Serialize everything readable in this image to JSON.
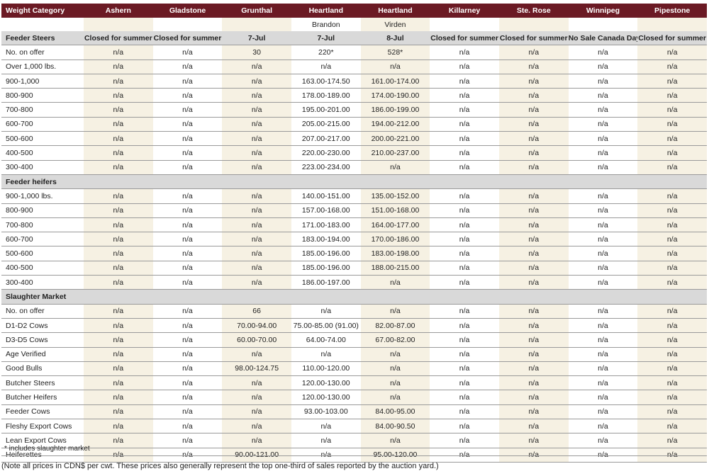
{
  "columns": [
    "Weight Category",
    "Ashern",
    "Gladstone",
    "Grunthal",
    "Heartland",
    "Heartland",
    "Killarney",
    "Ste. Rose",
    "Winnipeg",
    "Pipestone"
  ],
  "subheaders": [
    "",
    "",
    "",
    "",
    "Brandon",
    "Virden",
    "",
    "",
    "",
    ""
  ],
  "rows": [
    {
      "section": true,
      "cells": [
        "Feeder Steers",
        "Closed for summer",
        "Closed for summer",
        "7-Jul",
        "7-Jul",
        "8-Jul",
        "Closed for summer",
        "Closed for summer",
        "No Sale Canada Day",
        "Closed for summer"
      ]
    },
    {
      "cells": [
        "No. on offer",
        "n/a",
        "n/a",
        "30",
        "220*",
        "528*",
        "n/a",
        "n/a",
        "n/a",
        "n/a"
      ]
    },
    {
      "cells": [
        "Over 1,000 lbs.",
        "n/a",
        "n/a",
        "n/a",
        "n/a",
        "n/a",
        "n/a",
        "n/a",
        "n/a",
        "n/a"
      ]
    },
    {
      "cells": [
        "900-1,000",
        "n/a",
        "n/a",
        "n/a",
        "163.00-174.50",
        "161.00-174.00",
        "n/a",
        "n/a",
        "n/a",
        "n/a"
      ]
    },
    {
      "cells": [
        "800-900",
        "n/a",
        "n/a",
        "n/a",
        "178.00-189.00",
        "174.00-190.00",
        "n/a",
        "n/a",
        "n/a",
        "n/a"
      ]
    },
    {
      "cells": [
        "700-800",
        "n/a",
        "n/a",
        "n/a",
        "195.00-201.00",
        "186.00-199.00",
        "n/a",
        "n/a",
        "n/a",
        "n/a"
      ]
    },
    {
      "cells": [
        "600-700",
        "n/a",
        "n/a",
        "n/a",
        "205.00-215.00",
        "194.00-212.00",
        "n/a",
        "n/a",
        "n/a",
        "n/a"
      ]
    },
    {
      "cells": [
        "500-600",
        "n/a",
        "n/a",
        "n/a",
        "207.00-217.00",
        "200.00-221.00",
        "n/a",
        "n/a",
        "n/a",
        "n/a"
      ]
    },
    {
      "cells": [
        "400-500",
        "n/a",
        "n/a",
        "n/a",
        "220.00-230.00",
        "210.00-237.00",
        "n/a",
        "n/a",
        "n/a",
        "n/a"
      ]
    },
    {
      "cells": [
        "300-400",
        "n/a",
        "n/a",
        "n/a",
        "223.00-234.00",
        "n/a",
        "n/a",
        "n/a",
        "n/a",
        "n/a"
      ]
    },
    {
      "section": true,
      "cells": [
        "Feeder heifers",
        "",
        "",
        "",
        "",
        "",
        "",
        "",
        "",
        ""
      ]
    },
    {
      "cells": [
        "900-1,000 lbs.",
        "n/a",
        "n/a",
        "n/a",
        "140.00-151.00",
        "135.00-152.00",
        "n/a",
        "n/a",
        "n/a",
        "n/a"
      ]
    },
    {
      "cells": [
        "800-900",
        "n/a",
        "n/a",
        "n/a",
        "157.00-168.00",
        "151.00-168.00",
        "n/a",
        "n/a",
        "n/a",
        "n/a"
      ]
    },
    {
      "cells": [
        "700-800",
        "n/a",
        "n/a",
        "n/a",
        "171.00-183.00",
        "164.00-177.00",
        "n/a",
        "n/a",
        "n/a",
        "n/a"
      ]
    },
    {
      "cells": [
        "600-700",
        "n/a",
        "n/a",
        "n/a",
        "183.00-194.00",
        "170.00-186.00",
        "n/a",
        "n/a",
        "n/a",
        "n/a"
      ]
    },
    {
      "cells": [
        "500-600",
        "n/a",
        "n/a",
        "n/a",
        "185.00-196.00",
        "183.00-198.00",
        "n/a",
        "n/a",
        "n/a",
        "n/a"
      ]
    },
    {
      "cells": [
        "400-500",
        "n/a",
        "n/a",
        "n/a",
        "185.00-196.00",
        "188.00-215.00",
        "n/a",
        "n/a",
        "n/a",
        "n/a"
      ]
    },
    {
      "cells": [
        "300-400",
        "n/a",
        "n/a",
        "n/a",
        "186.00-197.00",
        "n/a",
        "n/a",
        "n/a",
        "n/a",
        "n/a"
      ]
    },
    {
      "section": true,
      "cells": [
        "Slaughter Market",
        "",
        "",
        "",
        "",
        "",
        "",
        "",
        "",
        ""
      ]
    },
    {
      "cells": [
        "No. on offer",
        "n/a",
        "n/a",
        "66",
        "n/a",
        "n/a",
        "n/a",
        "n/a",
        "n/a",
        "n/a"
      ]
    },
    {
      "cells": [
        "D1-D2 Cows",
        "n/a",
        "n/a",
        "70.00-94.00",
        "75.00-85.00 (91.00)",
        "82.00-87.00",
        "n/a",
        "n/a",
        "n/a",
        "n/a"
      ]
    },
    {
      "cells": [
        "D3-D5 Cows",
        "n/a",
        "n/a",
        "60.00-70.00",
        "64.00-74.00",
        "67.00-82.00",
        "n/a",
        "n/a",
        "n/a",
        "n/a"
      ]
    },
    {
      "cells": [
        "Age Verified",
        "n/a",
        "n/a",
        "n/a",
        "n/a",
        "n/a",
        "n/a",
        "n/a",
        "n/a",
        "n/a"
      ]
    },
    {
      "cells": [
        "Good Bulls",
        "n/a",
        "n/a",
        "98.00-124.75",
        "110.00-120.00",
        "n/a",
        "n/a",
        "n/a",
        "n/a",
        "n/a"
      ]
    },
    {
      "cells": [
        "Butcher Steers",
        "n/a",
        "n/a",
        "n/a",
        "120.00-130.00",
        "n/a",
        "n/a",
        "n/a",
        "n/a",
        "n/a"
      ]
    },
    {
      "cells": [
        "Butcher Heifers",
        "n/a",
        "n/a",
        "n/a",
        "120.00-130.00",
        "n/a",
        "n/a",
        "n/a",
        "n/a",
        "n/a"
      ]
    },
    {
      "cells": [
        "Feeder Cows",
        "n/a",
        "n/a",
        "n/a",
        "93.00-103.00",
        "84.00-95.00",
        "n/a",
        "n/a",
        "n/a",
        "n/a"
      ]
    },
    {
      "cells": [
        "Fleshy Export Cows",
        "n/a",
        "n/a",
        "n/a",
        "n/a",
        "84.00-90.50",
        "n/a",
        "n/a",
        "n/a",
        "n/a"
      ]
    },
    {
      "cells": [
        "Lean Export Cows",
        "n/a",
        "n/a",
        "n/a",
        "n/a",
        "n/a",
        "n/a",
        "n/a",
        "n/a",
        "n/a"
      ]
    },
    {
      "cells": [
        "Heiferettes",
        "n/a",
        "n/a",
        "90.00-121.00",
        "n/a",
        "95.00-120.00",
        "n/a",
        "n/a",
        "n/a",
        "n/a"
      ]
    }
  ],
  "footnote": "* includes slaughter market",
  "note": "(Note all prices in CDN$ per cwt. These prices also generally represent the top one-third of sales reported by the auction yard.)",
  "colors": {
    "header": "#6b1a24",
    "shade": "#f6f1e3",
    "section": "#d9d9d9"
  }
}
